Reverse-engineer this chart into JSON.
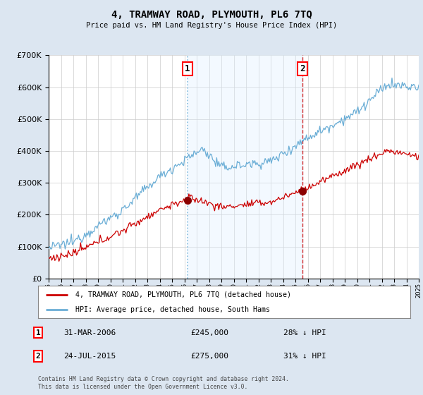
{
  "title": "4, TRAMWAY ROAD, PLYMOUTH, PL6 7TQ",
  "subtitle": "Price paid vs. HM Land Registry's House Price Index (HPI)",
  "legend_line1": "4, TRAMWAY ROAD, PLYMOUTH, PL6 7TQ (detached house)",
  "legend_line2": "HPI: Average price, detached house, South Hams",
  "annotation1_label": "1",
  "annotation1_date": "31-MAR-2006",
  "annotation1_price": "£245,000",
  "annotation1_hpi": "28% ↓ HPI",
  "annotation2_label": "2",
  "annotation2_date": "24-JUL-2015",
  "annotation2_price": "£275,000",
  "annotation2_hpi": "31% ↓ HPI",
  "footer": "Contains HM Land Registry data © Crown copyright and database right 2024.\nThis data is licensed under the Open Government Licence v3.0.",
  "hpi_color": "#6baed6",
  "price_color": "#cc0000",
  "background_color": "#dce6f1",
  "plot_bg_color": "#ffffff",
  "shade_color": "#ddeeff",
  "ylim": [
    0,
    700000
  ],
  "yticks": [
    0,
    100000,
    200000,
    300000,
    400000,
    500000,
    600000,
    700000
  ],
  "sale1_x": 2006.25,
  "sale1_y": 245000,
  "sale2_x": 2015.56,
  "sale2_y": 275000,
  "vline1_x": 2006.25,
  "vline2_x": 2015.56,
  "xmin": 1995,
  "xmax": 2025
}
